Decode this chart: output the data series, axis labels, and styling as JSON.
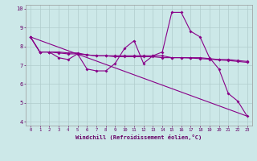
{
  "xlabel": "Windchill (Refroidissement éolien,°C)",
  "bg_color": "#cce8e8",
  "line_color": "#880088",
  "xlim": [
    -0.5,
    23.5
  ],
  "ylim": [
    3.8,
    10.2
  ],
  "xticks": [
    0,
    1,
    2,
    3,
    4,
    5,
    6,
    7,
    8,
    9,
    10,
    11,
    12,
    13,
    14,
    15,
    16,
    17,
    18,
    19,
    20,
    21,
    22,
    23
  ],
  "yticks": [
    4,
    5,
    6,
    7,
    8,
    9,
    10
  ],
  "grid_color": "#b0cccc",
  "series1_x": [
    0,
    1,
    2,
    3,
    4,
    5,
    6,
    7,
    8,
    9,
    10,
    11,
    12,
    13,
    14,
    15,
    16,
    17,
    18,
    19,
    20,
    21,
    22,
    23
  ],
  "series1_y": [
    8.5,
    7.7,
    7.7,
    7.4,
    7.3,
    7.6,
    6.8,
    6.7,
    6.7,
    7.1,
    7.9,
    8.3,
    7.1,
    7.5,
    7.7,
    9.8,
    9.8,
    8.8,
    8.5,
    7.4,
    6.8,
    5.5,
    5.1,
    4.3
  ],
  "series2_x": [
    0,
    1,
    2,
    3,
    4,
    5,
    6,
    7,
    8,
    9,
    10,
    11,
    12,
    13,
    14,
    15,
    16,
    17,
    18,
    19,
    20,
    21,
    22,
    23
  ],
  "series2_y": [
    8.5,
    7.7,
    7.7,
    7.7,
    7.65,
    7.65,
    7.55,
    7.5,
    7.5,
    7.5,
    7.5,
    7.5,
    7.5,
    7.5,
    7.5,
    7.4,
    7.4,
    7.4,
    7.4,
    7.35,
    7.3,
    7.3,
    7.25,
    7.2
  ],
  "series3_x": [
    0,
    1,
    2,
    3,
    4,
    5,
    6,
    7,
    8,
    9,
    10,
    11,
    12,
    13,
    14,
    15,
    16,
    17,
    18,
    19,
    20,
    21,
    22,
    23
  ],
  "series3_y": [
    8.5,
    7.7,
    7.7,
    7.65,
    7.6,
    7.6,
    7.55,
    7.5,
    7.5,
    7.45,
    7.45,
    7.45,
    7.45,
    7.45,
    7.4,
    7.4,
    7.4,
    7.38,
    7.35,
    7.32,
    7.28,
    7.25,
    7.2,
    7.15
  ],
  "series4_x": [
    0,
    23
  ],
  "series4_y": [
    8.5,
    4.3
  ],
  "marker_size": 2.0,
  "linewidth": 0.8
}
